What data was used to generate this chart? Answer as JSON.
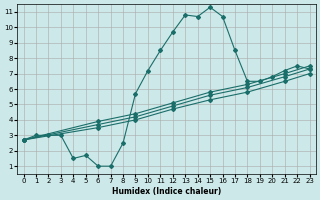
{
  "bg_color": "#cce8e8",
  "grid_color": "#aaaaaa",
  "line_color": "#1a6e6a",
  "xlim": [
    -0.5,
    23.5
  ],
  "ylim": [
    0.5,
    11.5
  ],
  "xticks": [
    0,
    1,
    2,
    3,
    4,
    5,
    6,
    7,
    8,
    9,
    10,
    11,
    12,
    13,
    14,
    15,
    16,
    17,
    18,
    19,
    20,
    21,
    22,
    23
  ],
  "yticks": [
    1,
    2,
    3,
    4,
    5,
    6,
    7,
    8,
    9,
    10,
    11
  ],
  "xlabel": "Humidex (Indice chaleur)",
  "main_x": [
    0,
    1,
    2,
    3,
    4,
    5,
    6,
    7,
    8,
    9,
    10,
    11,
    12,
    13,
    14,
    15,
    16,
    17,
    18,
    19,
    20,
    21,
    22,
    23
  ],
  "main_y": [
    2.7,
    3.0,
    3.0,
    3.0,
    1.5,
    1.7,
    1.0,
    1.0,
    2.5,
    5.7,
    7.2,
    8.5,
    9.7,
    10.8,
    10.7,
    11.3,
    10.7,
    8.5,
    6.5,
    6.5,
    6.8,
    7.2,
    7.5,
    7.3
  ],
  "line1_x": [
    0,
    6,
    9,
    12,
    15,
    18,
    21,
    23
  ],
  "line1_y": [
    2.7,
    3.5,
    4.0,
    4.7,
    5.3,
    5.8,
    6.5,
    7.0
  ],
  "line2_x": [
    0,
    6,
    9,
    12,
    15,
    18,
    21,
    23
  ],
  "line2_y": [
    2.7,
    3.7,
    4.2,
    4.9,
    5.6,
    6.1,
    6.8,
    7.3
  ],
  "line3_x": [
    0,
    6,
    9,
    12,
    15,
    18,
    21,
    23
  ],
  "line3_y": [
    2.7,
    3.9,
    4.4,
    5.1,
    5.8,
    6.3,
    7.0,
    7.5
  ]
}
